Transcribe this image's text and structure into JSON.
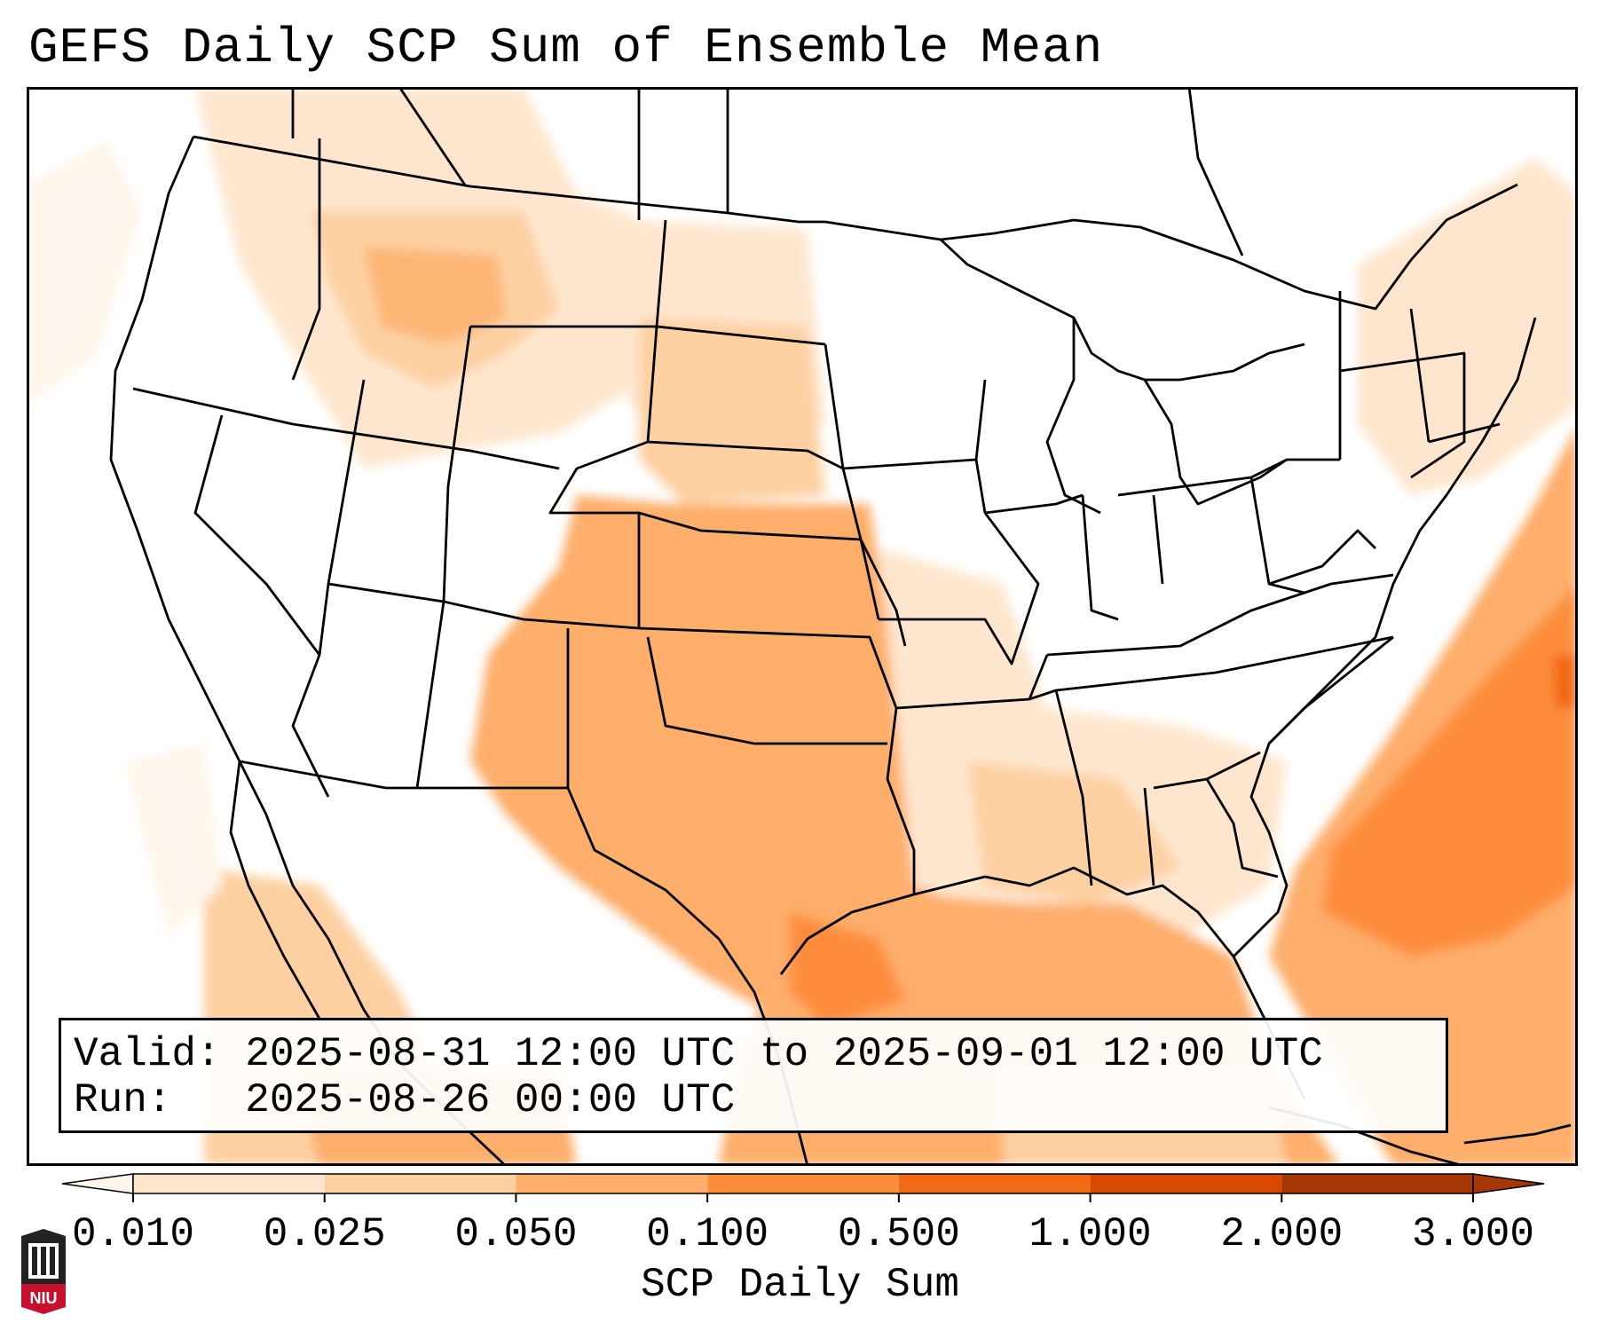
{
  "title": "GEFS Daily SCP Sum of Ensemble Mean",
  "info": {
    "valid_label": "Valid:",
    "valid_value": "2025-08-31 12:00 UTC to 2025-09-01 12:00 UTC",
    "run_label": "Run:",
    "run_value": "2025-08-26 00:00 UTC"
  },
  "colorbar": {
    "label": "SCP Daily Sum",
    "ticks": [
      "0.010",
      "0.025",
      "0.050",
      "0.100",
      "0.500",
      "1.000",
      "2.000",
      "3.000"
    ],
    "colors": [
      "#fff5eb",
      "#fee6ce",
      "#fdd0a2",
      "#fdae6b",
      "#fd8d3c",
      "#f16913",
      "#d94801",
      "#a63603"
    ],
    "extend": "both"
  },
  "logo": {
    "text": "NIU",
    "icon": "university-seal-icon",
    "color": "#c8102e"
  },
  "map": {
    "region": "North America (CONUS)",
    "outline_color": "#000000",
    "ocean_color": "#ffffff"
  }
}
